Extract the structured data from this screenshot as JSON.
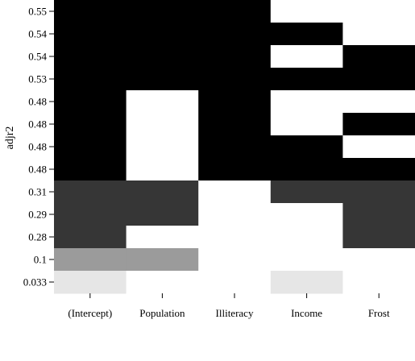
{
  "chart_data": {
    "type": "heatmap",
    "ylabel": "adjr2",
    "xlabel": "",
    "x_categories": [
      "(Intercept)",
      "Population",
      "Illiteracy",
      "Income",
      "Frost"
    ],
    "y_tick_labels": [
      "0.55",
      "0.54",
      "0.54",
      "0.53",
      "0.48",
      "0.48",
      "0.48",
      "0.48",
      "0.31",
      "0.29",
      "0.28",
      "0.1",
      "0.033"
    ],
    "shade_colors": {
      "0.55": "#000000",
      "0.54": "#000000",
      "0.53": "#000000",
      "0.48": "#000000",
      "0.31": "#363636",
      "0.29": "#363636",
      "0.28": "#363636",
      "0.1": "#9b9b9b",
      "0.033": "#e6e6e6",
      "excluded": "#ffffff"
    },
    "rows": [
      {
        "label": "0.55",
        "included": [
          1,
          1,
          1,
          0,
          0
        ]
      },
      {
        "label": "0.54",
        "included": [
          1,
          1,
          1,
          1,
          0
        ]
      },
      {
        "label": "0.54",
        "included": [
          1,
          1,
          1,
          0,
          1
        ]
      },
      {
        "label": "0.53",
        "included": [
          1,
          1,
          1,
          1,
          1
        ]
      },
      {
        "label": "0.48",
        "included": [
          1,
          0,
          1,
          0,
          0
        ]
      },
      {
        "label": "0.48",
        "included": [
          1,
          0,
          1,
          0,
          1
        ]
      },
      {
        "label": "0.48",
        "included": [
          1,
          0,
          1,
          1,
          0
        ]
      },
      {
        "label": "0.48",
        "included": [
          1,
          0,
          1,
          1,
          1
        ]
      },
      {
        "label": "0.31",
        "included": [
          1,
          1,
          0,
          1,
          1
        ]
      },
      {
        "label": "0.29",
        "included": [
          1,
          1,
          0,
          0,
          1
        ]
      },
      {
        "label": "0.28",
        "included": [
          1,
          0,
          0,
          0,
          1
        ]
      },
      {
        "label": "0.1",
        "included": [
          1,
          1,
          0,
          0,
          0
        ]
      },
      {
        "label": "0.033",
        "included": [
          1,
          0,
          0,
          1,
          0
        ]
      }
    ]
  }
}
